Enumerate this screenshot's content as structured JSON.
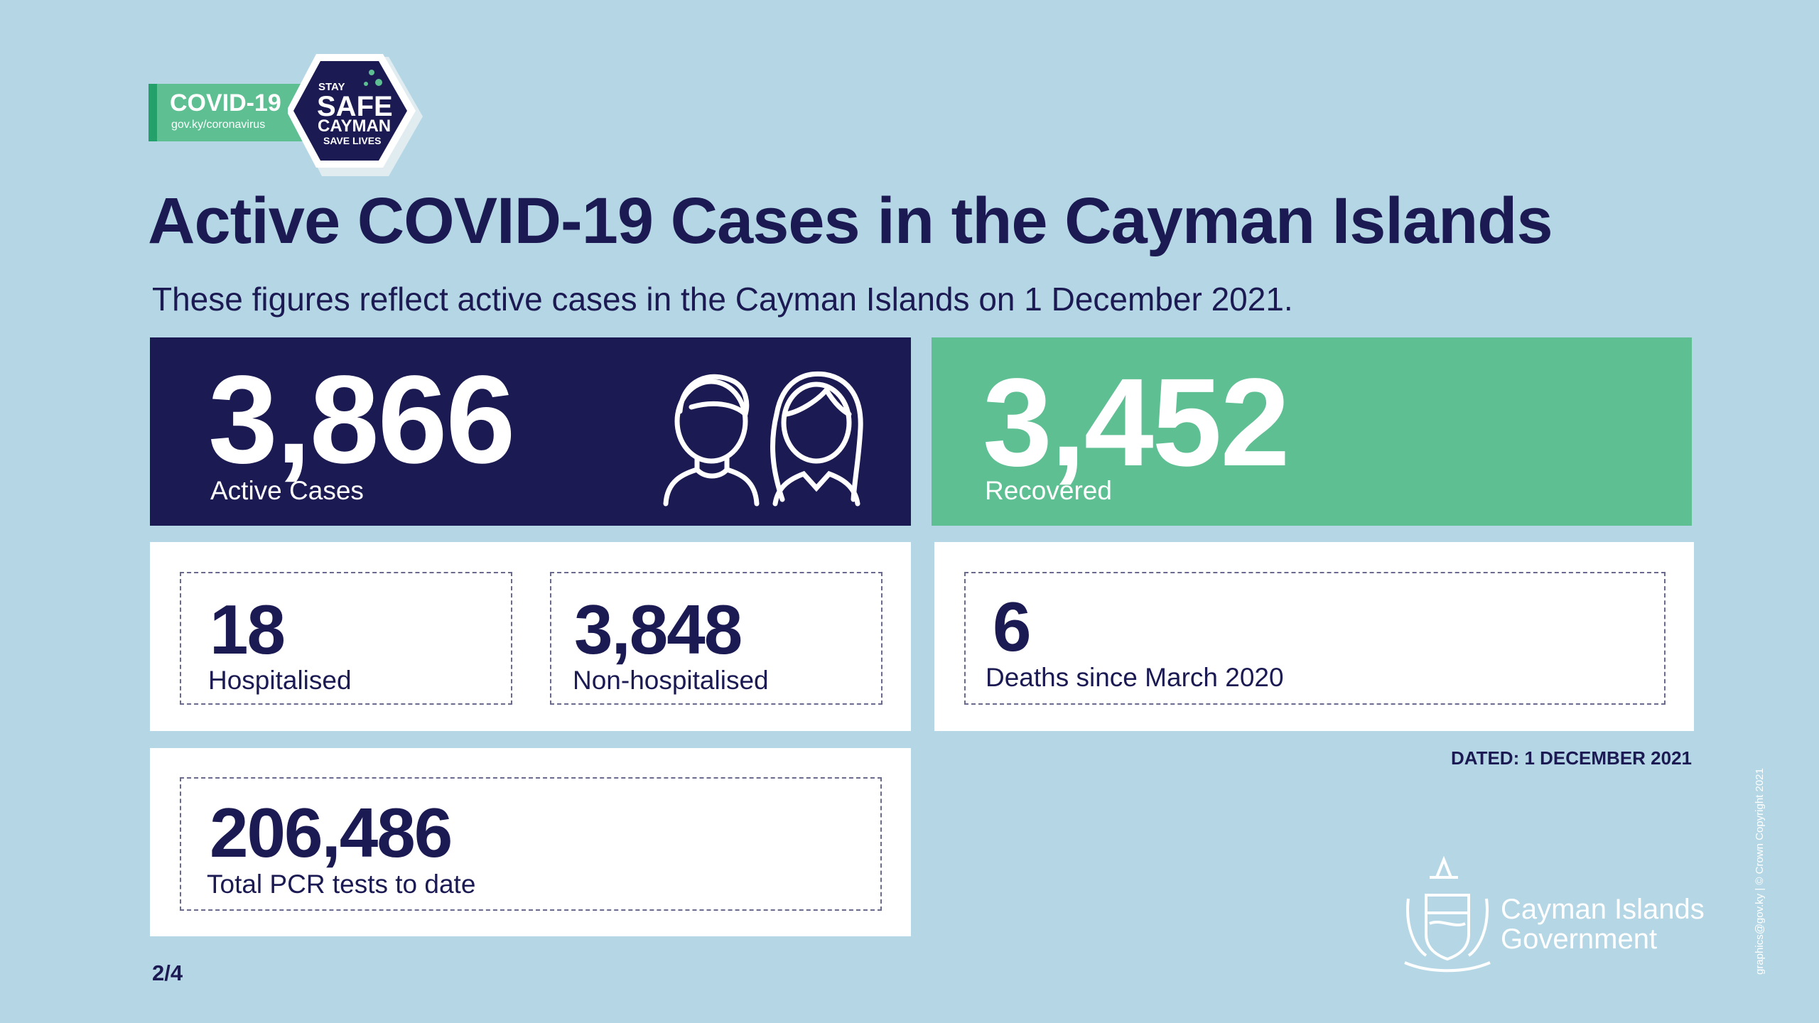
{
  "badge": {
    "title": "COVID-19",
    "url": "gov.ky/coronavirus",
    "stay": "STAY",
    "safe": "SAFE",
    "cayman": "CAYMAN",
    "save_lives": "SAVE LIVES"
  },
  "title": "Active COVID-19 Cases in the Cayman Islands",
  "subtitle": "These figures reflect active cases in the Cayman Islands on 1 December 2021.",
  "cards": [
    {
      "value": "3,866",
      "label": "Active Cases"
    },
    {
      "value": "3,452",
      "label": "Recovered"
    },
    {
      "value": "18",
      "label": "Hospitalised"
    },
    {
      "value": "3,848",
      "label": "Non-hospitalised"
    },
    {
      "value": "6",
      "label": "Deaths since March 2020"
    },
    {
      "value": "206,486",
      "label": "Total PCR tests to date"
    }
  ],
  "dated": "DATED: 1 DECEMBER 2021",
  "page": "2/4",
  "logo": {
    "line1": "Cayman Islands",
    "line2": "Government"
  },
  "credit": "graphics@gov.ky | © Crown Copyright 2021"
}
